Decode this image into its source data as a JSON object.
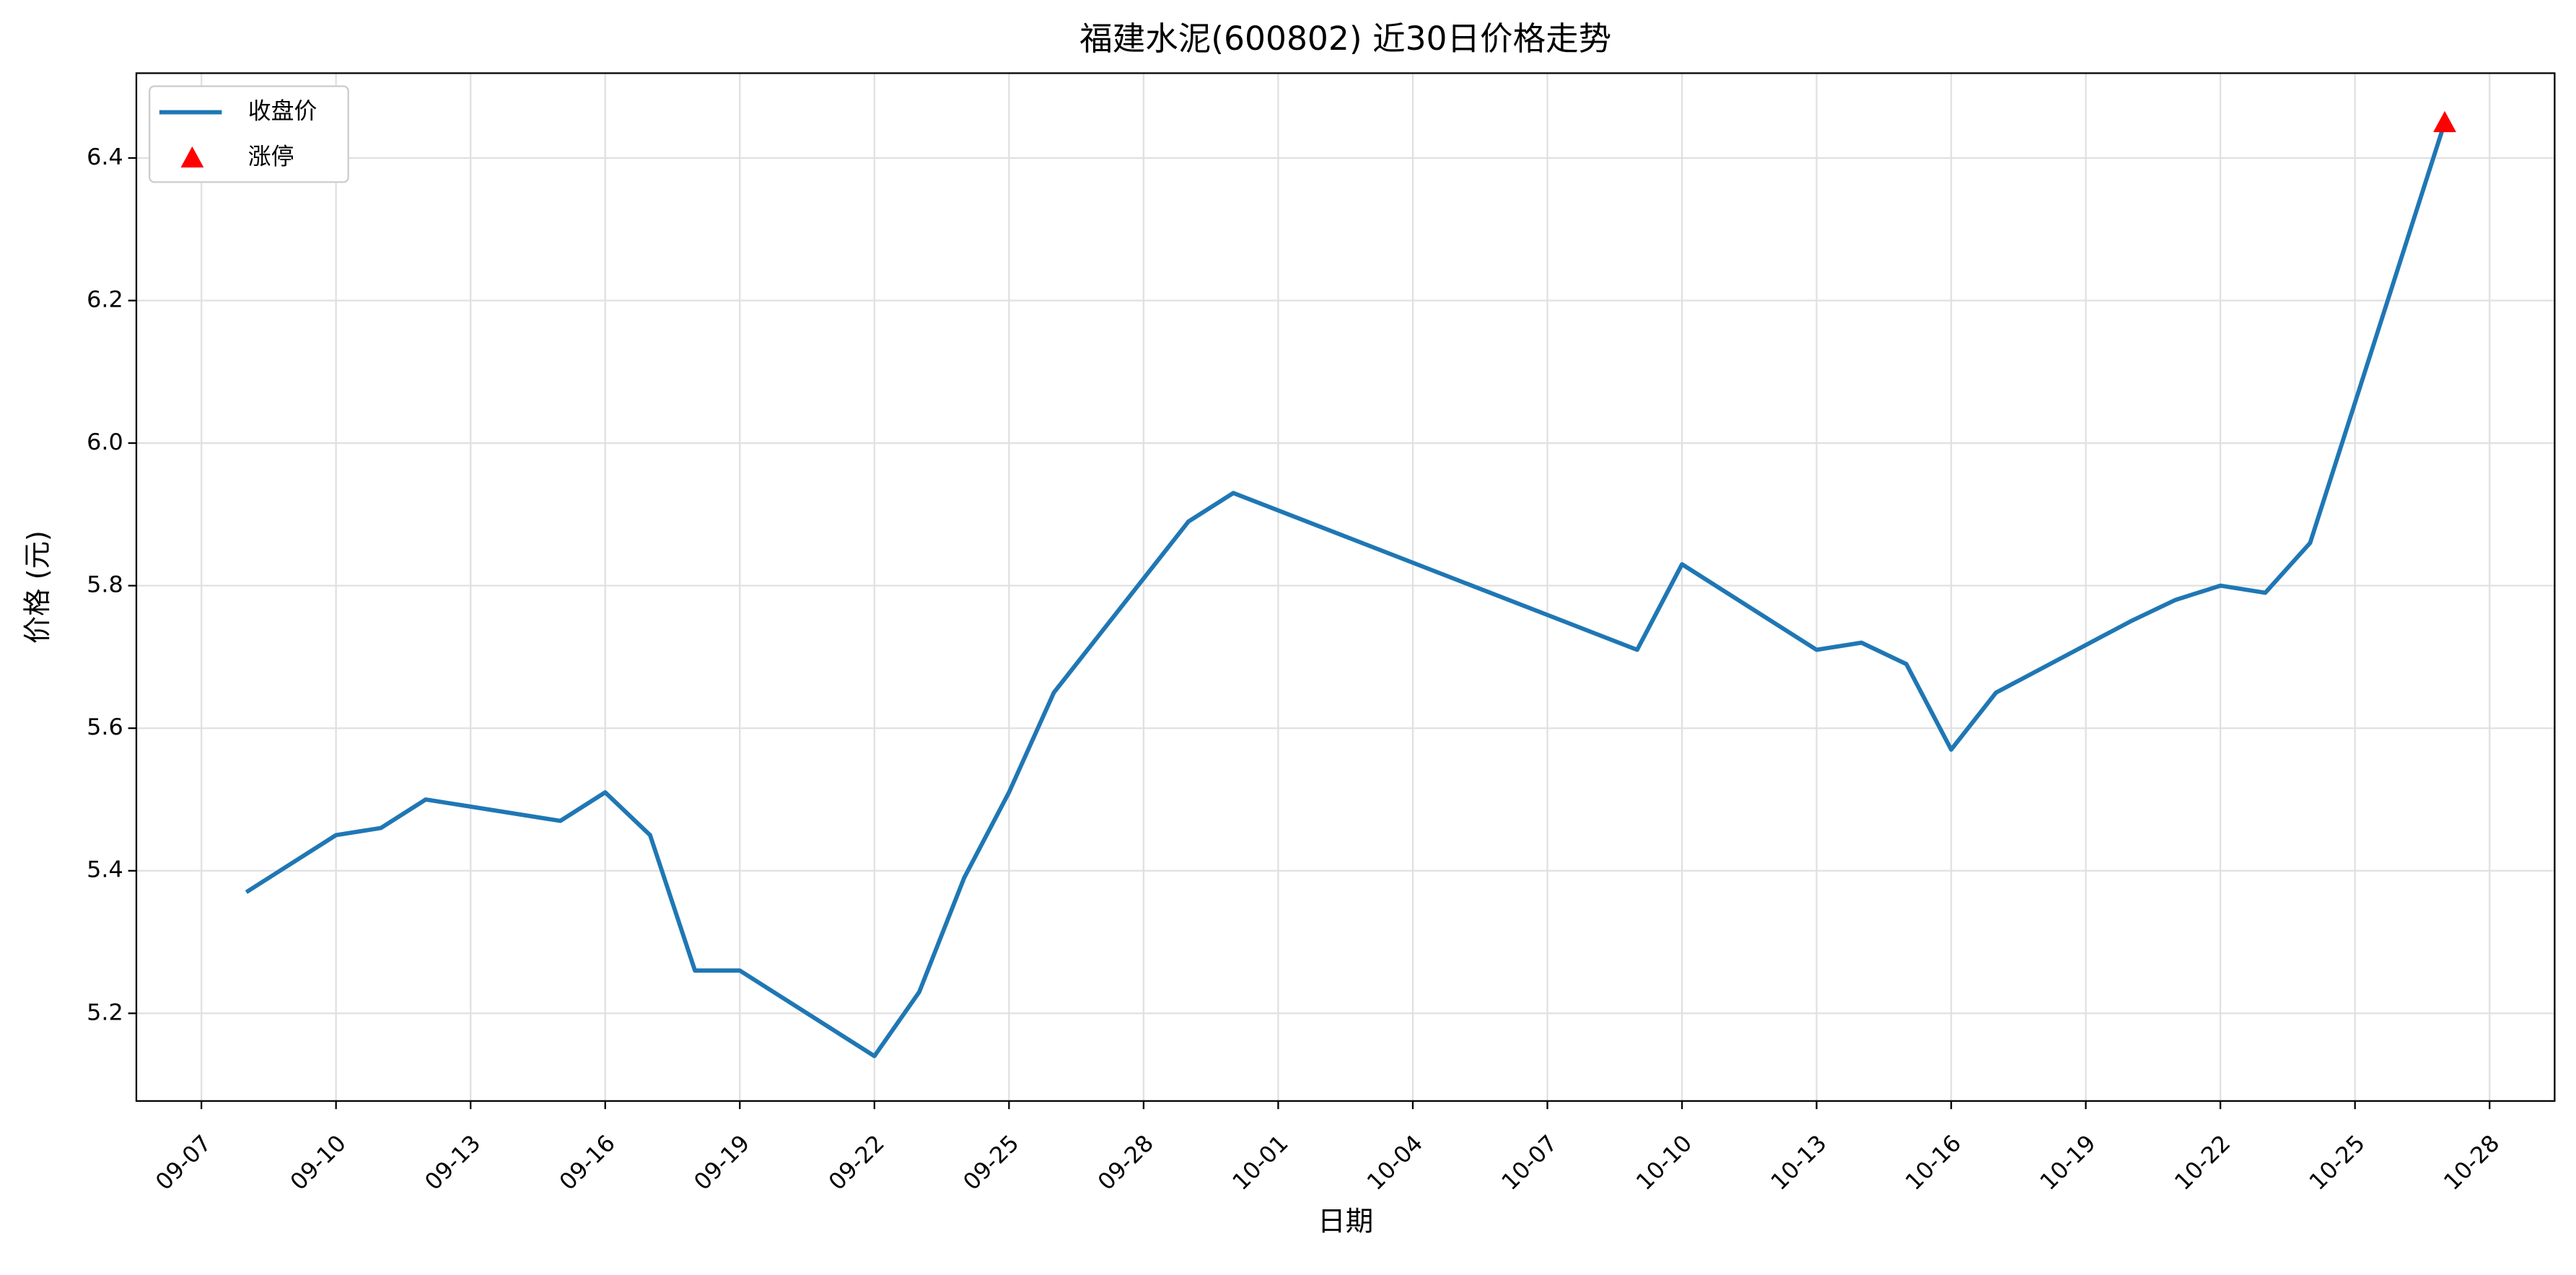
{
  "chart_data": {
    "type": "line",
    "title": "福建水泥(600802) 近30日价格走势",
    "xlabel": "日期",
    "ylabel": "价格 (元)",
    "x": [
      "09-08",
      "09-10",
      "09-11",
      "09-12",
      "09-15",
      "09-16",
      "09-17",
      "09-18",
      "09-19",
      "09-22",
      "09-23",
      "09-24",
      "09-25",
      "09-26",
      "09-29",
      "09-30",
      "10-09",
      "10-10",
      "10-13",
      "10-14",
      "10-15",
      "10-16",
      "10-17",
      "10-20",
      "10-21",
      "10-22",
      "10-23",
      "10-24",
      "10-27"
    ],
    "series": [
      {
        "name": "收盘价",
        "color": "#1f77b4",
        "values": [
          5.37,
          5.45,
          5.46,
          5.5,
          5.47,
          5.51,
          5.45,
          5.26,
          5.26,
          5.14,
          5.23,
          5.39,
          5.51,
          5.65,
          5.89,
          5.93,
          5.71,
          5.83,
          5.71,
          5.72,
          5.69,
          5.57,
          5.65,
          5.75,
          5.78,
          5.8,
          5.79,
          5.86,
          6.45
        ]
      },
      {
        "name": "涨停",
        "color": "#ff0000",
        "marker": "triangle",
        "values": [
          null,
          null,
          null,
          null,
          null,
          null,
          null,
          null,
          null,
          null,
          null,
          null,
          null,
          null,
          null,
          null,
          null,
          null,
          null,
          null,
          null,
          null,
          null,
          null,
          null,
          null,
          null,
          null,
          6.45
        ]
      }
    ],
    "xticks": [
      "09-07",
      "09-10",
      "09-13",
      "09-16",
      "09-19",
      "09-22",
      "09-25",
      "09-28",
      "10-01",
      "10-04",
      "10-07",
      "10-10",
      "10-13",
      "10-16",
      "10-19",
      "10-22",
      "10-25",
      "10-28"
    ],
    "ylim": [
      5.077,
      6.519
    ],
    "yticks": [
      5.2,
      5.4,
      5.6,
      5.8,
      {
        "value": 6,
        "label": "6.0"
      },
      6.2,
      6.4
    ],
    "grid": true,
    "legend": "upper left"
  }
}
